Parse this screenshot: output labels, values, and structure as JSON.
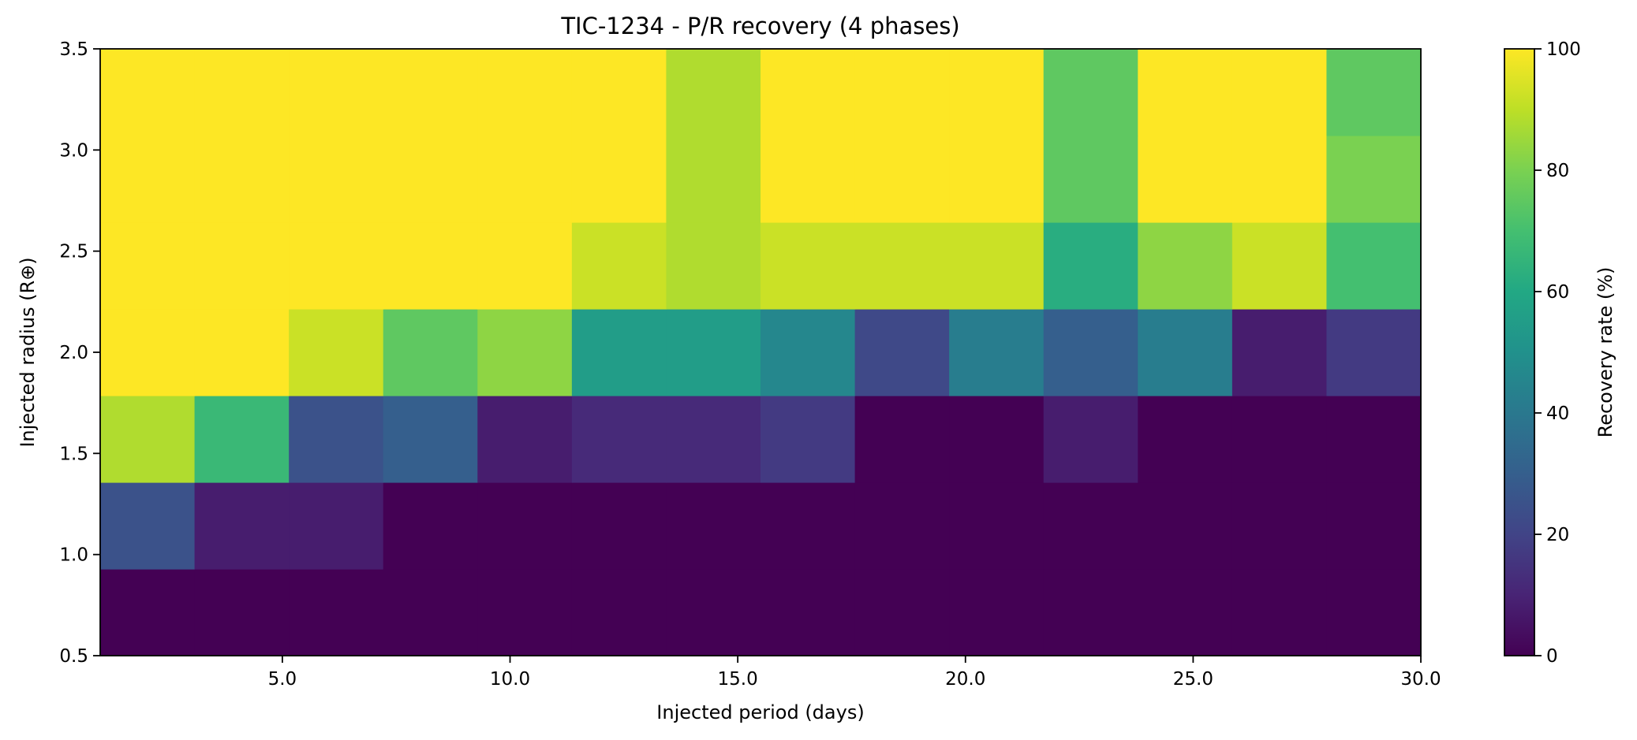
{
  "chart_data": {
    "type": "heatmap",
    "title": "TIC-1234 - P/R recovery (4 phases)",
    "xlabel": "Injected period (days)",
    "ylabel": "Injected radius (R⊕)",
    "colorbar_label": "Recovery rate (%)",
    "colormap": "viridis",
    "xlim": [
      1.0,
      30.0
    ],
    "ylim": [
      0.5,
      3.5
    ],
    "clim": [
      0,
      100
    ],
    "x_ticks": [
      5.0,
      10.0,
      15.0,
      20.0,
      25.0,
      30.0
    ],
    "x_tick_labels": [
      "5.0",
      "10.0",
      "15.0",
      "20.0",
      "25.0",
      "30.0"
    ],
    "y_ticks": [
      0.5,
      1.0,
      1.5,
      2.0,
      2.5,
      3.0,
      3.5
    ],
    "y_tick_labels": [
      "0.5",
      "1.0",
      "1.5",
      "2.0",
      "2.5",
      "3.0",
      "3.5"
    ],
    "colorbar_ticks": [
      0,
      20,
      40,
      60,
      80,
      100
    ],
    "colorbar_tick_labels": [
      "0",
      "20",
      "40",
      "60",
      "80",
      "100"
    ],
    "values": [
      [
        0,
        0,
        0,
        0,
        0,
        0,
        0,
        0,
        0,
        0,
        0,
        0,
        0,
        0
      ],
      [
        25,
        8,
        8,
        0,
        0,
        0,
        0,
        0,
        0,
        0,
        0,
        0,
        0,
        0
      ],
      [
        88,
        67,
        25,
        30,
        8,
        12,
        12,
        17,
        0,
        0,
        8,
        0,
        0,
        0
      ],
      [
        100,
        100,
        92,
        75,
        83,
        55,
        55,
        46,
        22,
        42,
        30,
        42,
        8,
        17
      ],
      [
        100,
        100,
        100,
        100,
        100,
        92,
        88,
        92,
        92,
        92,
        62,
        83,
        92,
        70
      ],
      [
        100,
        100,
        100,
        100,
        100,
        100,
        88,
        100,
        100,
        100,
        75,
        100,
        100,
        80
      ],
      [
        100,
        100,
        100,
        100,
        100,
        100,
        88,
        100,
        100,
        100,
        75,
        100,
        100,
        75
      ]
    ]
  }
}
